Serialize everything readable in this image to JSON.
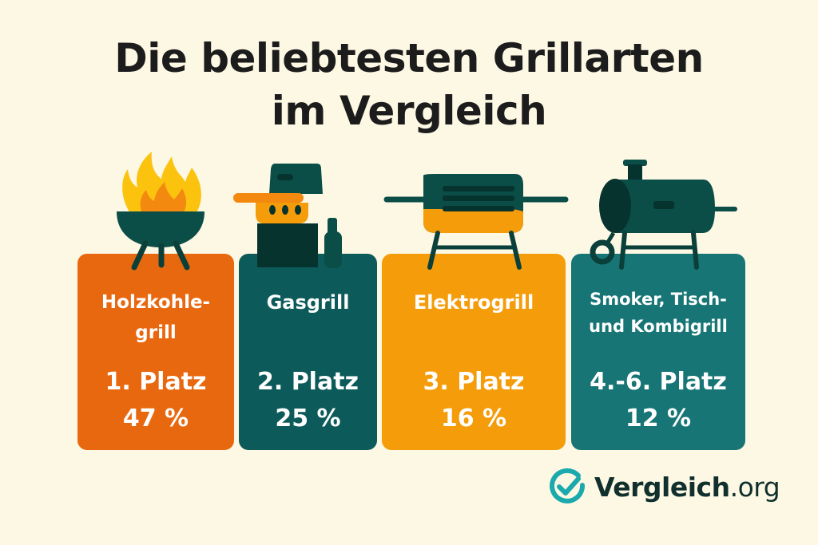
{
  "title": {
    "line1": "Die beliebtesten Grillarten",
    "line2": "im Vergleich"
  },
  "cards": [
    {
      "name_line1": "Holzkohle-",
      "name_line2": "grill",
      "rank": "1. Platz",
      "percent": "47 %",
      "share": 47,
      "color": "#e8680f",
      "icon": "charcoal-grill-icon"
    },
    {
      "name_line1": "Gasgrill",
      "name_line2": "",
      "rank": "2. Platz",
      "percent": "25 %",
      "share": 25,
      "color": "#0c5a5a",
      "icon": "gas-grill-icon"
    },
    {
      "name_line1": "Elektrogrill",
      "name_line2": "",
      "rank": "3. Platz",
      "percent": "16 %",
      "share": 16,
      "color": "#f59c0a",
      "icon": "electric-grill-icon"
    },
    {
      "name_line1": "Smoker, Tisch-",
      "name_line2": "und Kombigrill",
      "rank": "4.-6. Platz",
      "percent": "12 %",
      "share": 12,
      "color": "#187576",
      "icon": "smoker-icon"
    }
  ],
  "logo": {
    "brand": "Vergleich",
    "tld": ".org",
    "icon": "checkmark-circle-icon",
    "color": "#1aa9ad"
  }
}
